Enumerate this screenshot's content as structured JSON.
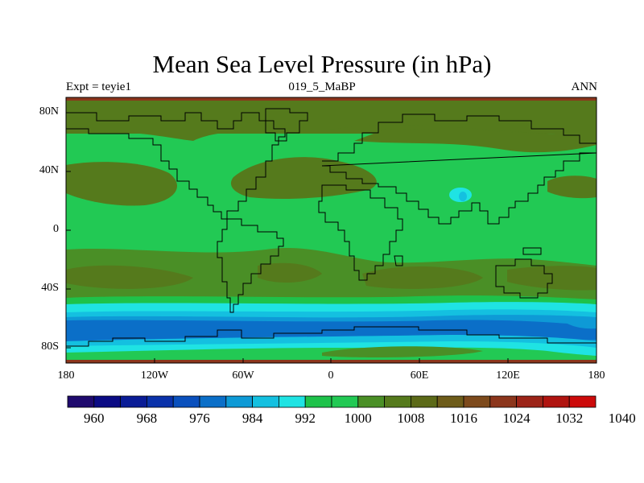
{
  "title": "Mean Sea Level Pressure (in hPa)",
  "subtitle_left": "Expt = teyie1",
  "subtitle_center": "019_5_MaBP",
  "subtitle_right": "ANN",
  "lat_ticks": [
    "80N",
    "40N",
    "0",
    "40S",
    "80S"
  ],
  "lon_ticks": [
    "180",
    "120W",
    "60W",
    "0",
    "60E",
    "120E",
    "180"
  ],
  "colorbar": {
    "colors": [
      "#1f0a6e",
      "#0b0b84",
      "#0a1c96",
      "#0a32aa",
      "#0a50bd",
      "#0b6fc8",
      "#0e9ad6",
      "#14c0e0",
      "#1fe3e3",
      "#1ec24a",
      "#22c954",
      "#4a8f26",
      "#557a1c",
      "#5c6a18",
      "#6e5c1a",
      "#7d4a1c",
      "#8c361c",
      "#9c2418",
      "#b01410",
      "#cc0a0a"
    ],
    "labels": [
      "960",
      "968",
      "976",
      "984",
      "992",
      "1000",
      "1008",
      "1016",
      "1024",
      "1032",
      "1040"
    ]
  },
  "regions": {
    "band_colors": {
      "p1020": "#5c6a18",
      "p1016": "#557a1c",
      "p1012": "#4a8f26",
      "p1008": "#22c954",
      "p1004": "#1ec24a",
      "p1000": "#1fe3e3",
      "p996": "#14c0e0",
      "p992": "#0e9ad6",
      "p988": "#0b6fc8",
      "p1028": "#8c361c"
    }
  }
}
